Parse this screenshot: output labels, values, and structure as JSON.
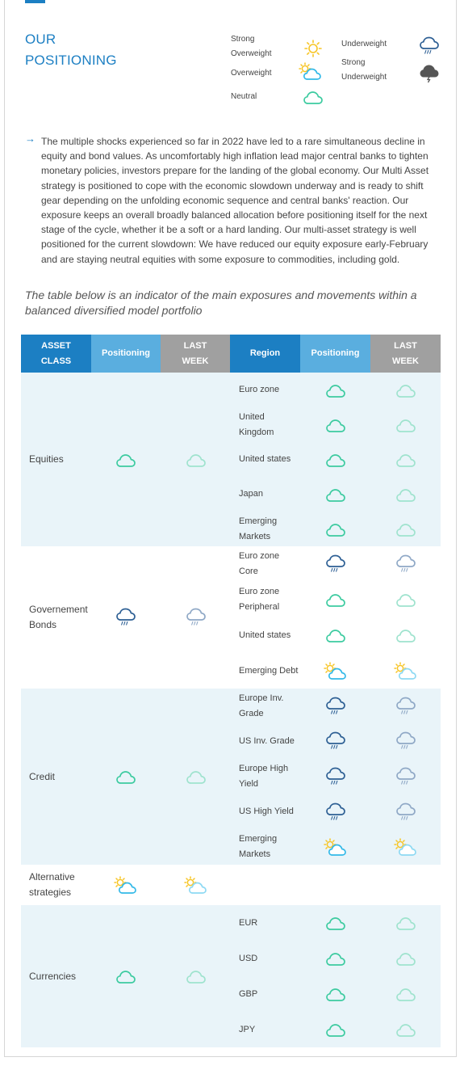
{
  "header": {
    "title_line1": "OUR",
    "title_line2": "POSITIONING"
  },
  "legend": {
    "strong_overweight": {
      "line1": "Strong",
      "line2": "Overweight",
      "icon": "sun-icon"
    },
    "overweight": {
      "label": "Overweight",
      "icon": "sun-cloud-icon"
    },
    "neutral": {
      "label": "Neutral",
      "icon": "cloud-icon"
    },
    "underweight": {
      "label": "Underweight",
      "icon": "rain-cloud-icon"
    },
    "strong_underweight": {
      "line1": "Strong",
      "line2": "Underweight",
      "icon": "storm-cloud-icon"
    }
  },
  "intro": "The multiple shocks experienced so far in 2022 have led to a rare simultaneous decline in equity and bond values. As uncomfortably high inflation lead major central banks to tighten monetary policies, investors prepare for the landing of the global economy. Our Multi Asset strategy is positioned to cope with the economic slowdown underway and is ready to shift gear depending on the unfolding economic sequence and central banks' reaction. Our exposure keeps an overall broadly balanced allocation before positioning itself for the next stage of the cycle, whether it be a soft or a hard landing. Our multi-asset strategy is well positioned for the current slowdown: We have reduced our equity exposure early-February and are staying neutral equities with some exposure to commodities, including gold.",
  "note": "The table below is an indicator of the main exposures and movements within a balanced diversified model portfolio",
  "table": {
    "headers": {
      "asset_class_1": "ASSET",
      "asset_class_2": "CLASS",
      "positioning": "Positioning",
      "last_week_1": "LAST",
      "last_week_2": "WEEK",
      "region": "Region",
      "positioning2": "Positioning",
      "last_week2_1": "LAST",
      "last_week2_2": "WEEK"
    },
    "groups": [
      {
        "asset_line1": "Equities",
        "asset_line2": "",
        "positioning": "neutral",
        "last_week": "neutral",
        "regions": [
          {
            "l1": "Euro zone",
            "l2": "",
            "positioning": "neutral",
            "last_week": "neutral"
          },
          {
            "l1": "United",
            "l2": "Kingdom",
            "positioning": "neutral",
            "last_week": "neutral"
          },
          {
            "l1": "United states",
            "l2": "",
            "positioning": "neutral",
            "last_week": "neutral"
          },
          {
            "l1": "Japan",
            "l2": "",
            "positioning": "neutral",
            "last_week": "neutral"
          },
          {
            "l1": "Emerging",
            "l2": "Markets",
            "positioning": "neutral",
            "last_week": "neutral"
          }
        ]
      },
      {
        "asset_line1": "Governement",
        "asset_line2": "Bonds",
        "positioning": "underweight",
        "last_week": "underweight",
        "regions": [
          {
            "l1": "Euro zone",
            "l2": "Core",
            "positioning": "underweight",
            "last_week": "underweight"
          },
          {
            "l1": "Euro zone",
            "l2": "Peripheral",
            "positioning": "neutral",
            "last_week": "neutral"
          },
          {
            "l1": "United states",
            "l2": "",
            "positioning": "neutral",
            "last_week": "neutral"
          },
          {
            "l1": "Emerging Debt",
            "l2": "",
            "positioning": "overweight",
            "last_week": "overweight"
          }
        ]
      },
      {
        "asset_line1": "Credit",
        "asset_line2": "",
        "positioning": "neutral",
        "last_week": "neutral",
        "regions": [
          {
            "l1": "Europe Inv.",
            "l2": "Grade",
            "positioning": "underweight",
            "last_week": "underweight"
          },
          {
            "l1": "US Inv. Grade",
            "l2": "",
            "positioning": "underweight",
            "last_week": "underweight"
          },
          {
            "l1": "Europe High",
            "l2": "Yield",
            "positioning": "underweight",
            "last_week": "underweight"
          },
          {
            "l1": "US High Yield",
            "l2": "",
            "positioning": "underweight",
            "last_week": "underweight"
          },
          {
            "l1": "Emerging",
            "l2": "Markets",
            "positioning": "overweight",
            "last_week": "overweight"
          }
        ]
      },
      {
        "asset_line1": "Alternative",
        "asset_line2": "strategies",
        "positioning": "overweight",
        "last_week": "overweight",
        "regions": []
      },
      {
        "asset_line1": "Currencies",
        "asset_line2": "",
        "positioning": "neutral",
        "last_week": "neutral",
        "regions": [
          {
            "l1": "EUR",
            "l2": "",
            "positioning": "neutral",
            "last_week": "neutral"
          },
          {
            "l1": "USD",
            "l2": "",
            "positioning": "neutral",
            "last_week": "neutral"
          },
          {
            "l1": "GBP",
            "l2": "",
            "positioning": "neutral",
            "last_week": "neutral"
          },
          {
            "l1": "JPY",
            "l2": "",
            "positioning": "neutral",
            "last_week": "neutral"
          }
        ]
      }
    ]
  },
  "colors": {
    "brand_blue": "#1c7fc3",
    "header_light_blue": "#5aaedf",
    "header_gray": "#a0a0a0",
    "band_blue": "#e9f4f9",
    "neutral_green": "#3dcba0",
    "underweight_blue": "#2d5f94",
    "sun_yellow": "#f7c526",
    "overweight_cloud": "#33b9e8"
  }
}
